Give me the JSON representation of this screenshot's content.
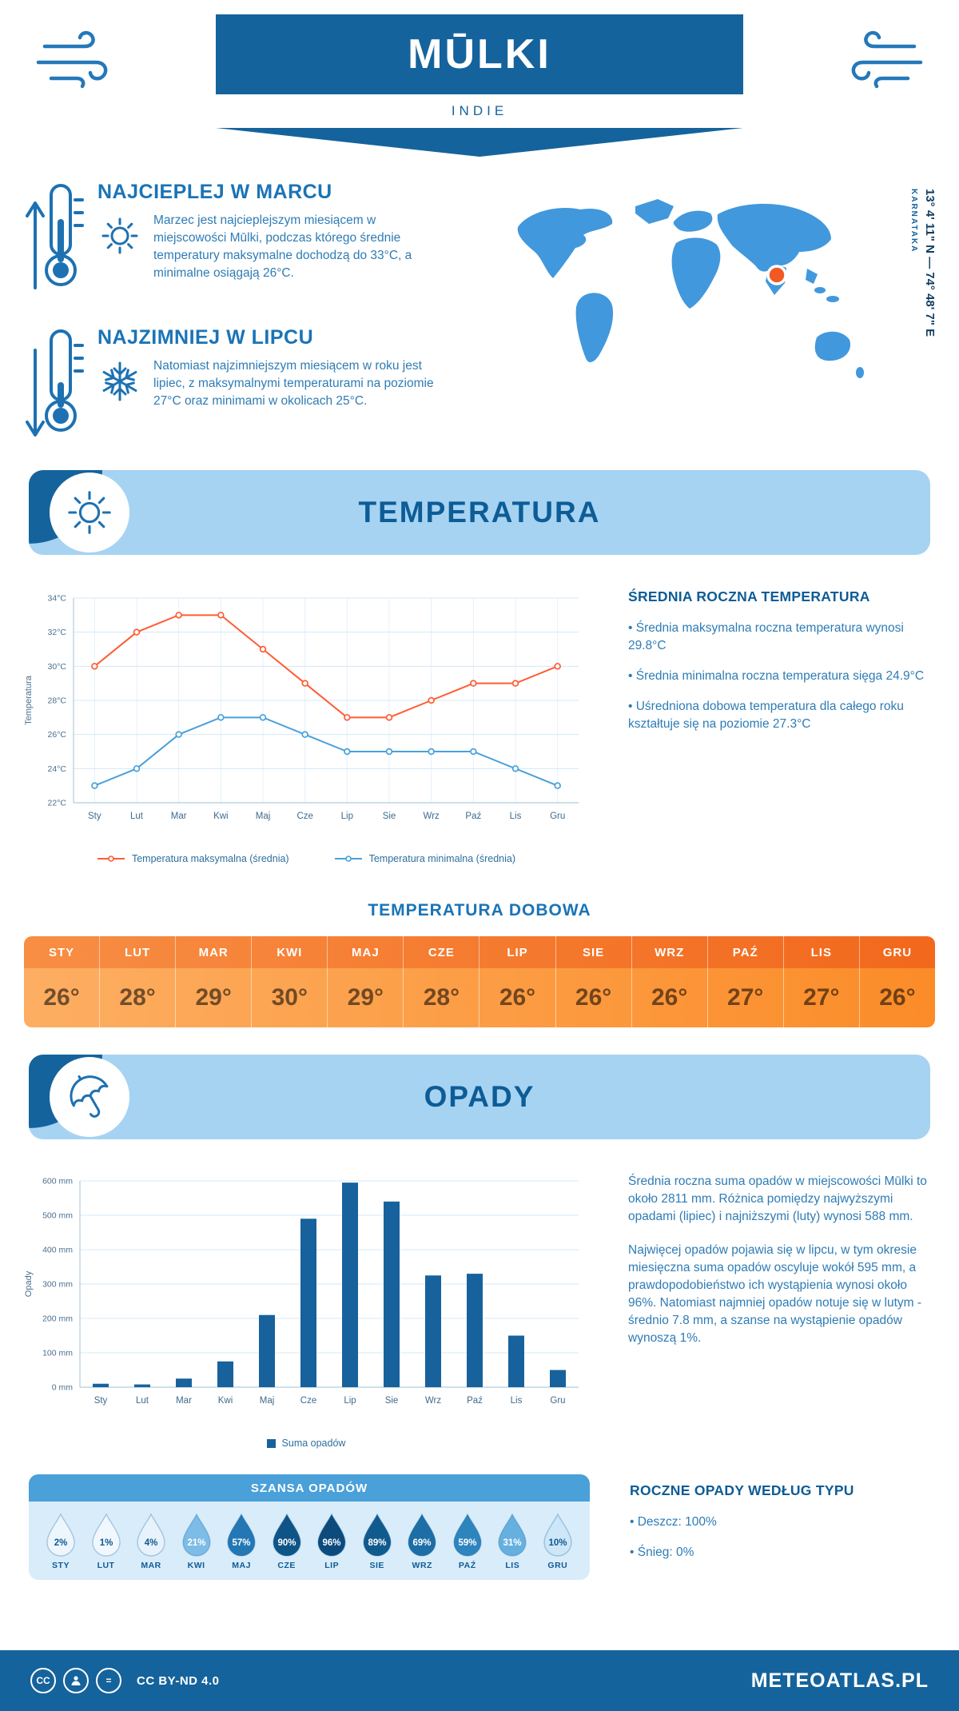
{
  "header": {
    "title": "MŪLKI",
    "subtitle": "INDIE"
  },
  "intro": {
    "warm": {
      "heading": "NAJCIEPLEJ W MARCU",
      "text": "Marzec jest najcieplejszym miesiącem w miejscowości Mūlki, podczas którego średnie temperatury maksymalne dochodzą do 33°C, a minimalne osiągają 26°C."
    },
    "cold": {
      "heading": "NAJZIMNIEJ W LIPCU",
      "text": "Natomiast najzimniejszym miesiącem w roku jest lipiec, z maksymalnymi temperaturami na poziomie 27°C oraz minimami w okolicach 25°C."
    }
  },
  "map": {
    "region": "KARNATAKA",
    "coordinates": "13° 4' 11\" N — 74° 48' 7\" E"
  },
  "sections": {
    "temperature": "TEMPERATURA",
    "precipitation": "OPADY"
  },
  "temperature": {
    "stats_heading": "ŚREDNIA ROCZNA TEMPERATURA",
    "stats": [
      "Średnia maksymalna roczna temperatura wynosi 29.8°C",
      "Średnia minimalna roczna temperatura sięga 24.9°C",
      "Uśredniona dobowa temperatura dla całego roku kształtuje się na poziomie 27.3°C"
    ],
    "daily_heading": "TEMPERATURA DOBOWA",
    "daily": {
      "months": [
        "STY",
        "LUT",
        "MAR",
        "KWI",
        "MAJ",
        "CZE",
        "LIP",
        "SIE",
        "WRZ",
        "PAŹ",
        "LIS",
        "GRU"
      ],
      "values": [
        "26°",
        "28°",
        "29°",
        "30°",
        "29°",
        "28°",
        "26°",
        "26°",
        "26°",
        "27°",
        "27°",
        "26°"
      ]
    }
  },
  "precipitation": {
    "texts": [
      "Średnia roczna suma opadów w miejscowości Mūlki to około 2811 mm. Różnica pomiędzy najwyższymi opadami (lipiec) i najniższymi (luty) wynosi 588 mm.",
      "Najwięcej opadów pojawia się w lipcu, w tym okresie miesięczna suma opadów oscyluje wokół 595 mm, a prawdopodobieństwo ich wystąpienia wynosi około 96%. Natomiast najmniej opadów notuje się w lutym - średnio 7.8 mm, a szanse na wystąpienie opadów wynoszą 1%."
    ]
  },
  "chance": {
    "heading": "SZANSA OPADÓW",
    "items": [
      {
        "month": "STY",
        "value": "2%",
        "fill": "#eef6fd",
        "text_color": "#11598f"
      },
      {
        "month": "LUT",
        "value": "1%",
        "fill": "#f0f8fe",
        "text_color": "#11598f"
      },
      {
        "month": "MAR",
        "value": "4%",
        "fill": "#e7f2fb",
        "text_color": "#11598f"
      },
      {
        "month": "KWI",
        "value": "21%",
        "fill": "#7cbce6",
        "text_color": "#ffffff"
      },
      {
        "month": "MAJ",
        "value": "57%",
        "fill": "#2377b4",
        "text_color": "#ffffff"
      },
      {
        "month": "CZE",
        "value": "90%",
        "fill": "#0f5487",
        "text_color": "#ffffff"
      },
      {
        "month": "LIP",
        "value": "96%",
        "fill": "#0c4b7c",
        "text_color": "#ffffff"
      },
      {
        "month": "SIE",
        "value": "89%",
        "fill": "#115a8e",
        "text_color": "#ffffff"
      },
      {
        "month": "WRZ",
        "value": "69%",
        "fill": "#1d6da6",
        "text_color": "#ffffff"
      },
      {
        "month": "PAŹ",
        "value": "59%",
        "fill": "#2e84bd",
        "text_color": "#ffffff"
      },
      {
        "month": "LIS",
        "value": "31%",
        "fill": "#66b0e0",
        "text_color": "#ffffff"
      },
      {
        "month": "GRU",
        "value": "10%",
        "fill": "#cde6f8",
        "text_color": "#11598f"
      }
    ]
  },
  "rain_type": {
    "heading": "ROCZNE OPADY WEDŁUG TYPU",
    "items": [
      "Deszcz: 100%",
      "Śnieg: 0%"
    ]
  },
  "footer": {
    "cc_badge": "CC",
    "nd_badge": "=",
    "license": "CC BY-ND 4.0",
    "site": "METEOATLAS.PL"
  },
  "chart_data": [
    {
      "type": "line",
      "title": "",
      "categories": [
        "Sty",
        "Lut",
        "Mar",
        "Kwi",
        "Maj",
        "Cze",
        "Lip",
        "Sie",
        "Wrz",
        "Paź",
        "Lis",
        "Gru"
      ],
      "series": [
        {
          "name": "Temperatura maksymalna (średnia)",
          "color": "#ff5c33",
          "values": [
            30,
            32,
            33,
            33,
            31,
            29,
            27,
            27,
            28,
            29,
            29,
            30
          ]
        },
        {
          "name": "Temperatura minimalna (średnia)",
          "color": "#4aa0dc",
          "values": [
            23,
            24,
            26,
            27,
            27,
            26,
            25,
            25,
            25,
            25,
            24,
            23
          ]
        }
      ],
      "ylabel": "Temperatura",
      "ylim": [
        22,
        34
      ],
      "ytick_step": 2,
      "ytick_suffix": "°C",
      "grid": true,
      "legend_position": "bottom"
    },
    {
      "type": "bar",
      "title": "",
      "categories": [
        "Sty",
        "Lut",
        "Mar",
        "Kwi",
        "Maj",
        "Cze",
        "Lip",
        "Sie",
        "Wrz",
        "Paź",
        "Lis",
        "Gru"
      ],
      "values": [
        10,
        8,
        25,
        75,
        210,
        490,
        595,
        540,
        325,
        330,
        150,
        50
      ],
      "color": "#17629c",
      "ylabel": "Opady",
      "ylim": [
        0,
        600
      ],
      "ytick_step": 100,
      "ytick_suffix": " mm",
      "legend": "Suma opadów",
      "grid": true,
      "legend_position": "bottom"
    }
  ]
}
